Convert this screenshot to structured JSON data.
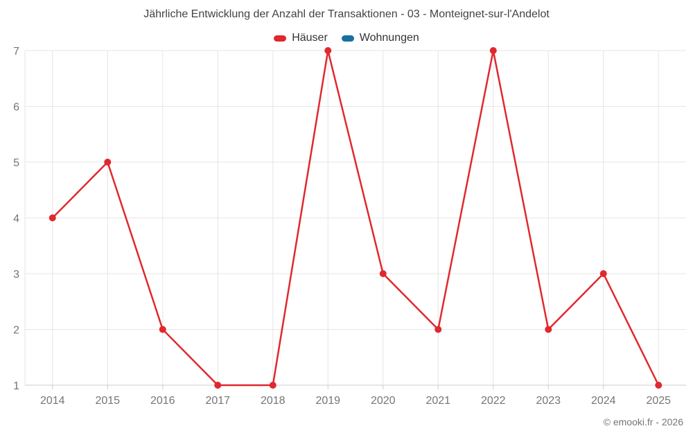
{
  "chart": {
    "title": "Jährliche Entwicklung der Anzahl der Transaktionen - 03 - Monteignet-sur-l'Andelot",
    "credit": "© emooki.fr - 2026"
  },
  "chart_data": {
    "type": "line",
    "categories": [
      "2014",
      "2015",
      "2016",
      "2017",
      "2018",
      "2019",
      "2020",
      "2021",
      "2022",
      "2023",
      "2024",
      "2025"
    ],
    "series": [
      {
        "name": "Häuser",
        "color": "#e0282d",
        "values": [
          4,
          5,
          2,
          1,
          1,
          7,
          3,
          2,
          7,
          2,
          3,
          1
        ]
      },
      {
        "name": "Wohnungen",
        "color": "#17709e",
        "values": []
      }
    ],
    "title": "Jährliche Entwicklung der Anzahl der Transaktionen - 03 - Monteignet-sur-l'Andelot",
    "xlabel": "",
    "ylabel": "",
    "ylim": [
      1,
      7
    ],
    "yticks": [
      1,
      2,
      3,
      4,
      5,
      6,
      7
    ],
    "grid": true,
    "legend_position": "top",
    "colors": {
      "grid_line": "#e6e6e6",
      "axis_line": "#cccccc",
      "tick_label": "#757575",
      "title_text": "#424242",
      "legend_text": "#333333"
    }
  }
}
